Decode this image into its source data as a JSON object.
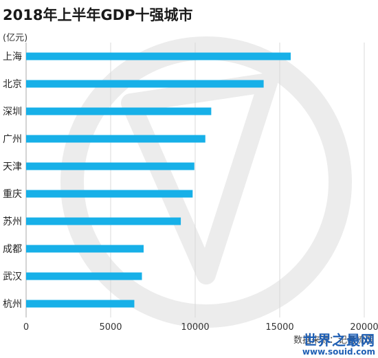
{
  "chart_data": {
    "type": "bar",
    "orientation": "horizontal",
    "title": "2018年上半年GDP十强城市",
    "unit": "(亿元)",
    "categories": [
      "上海",
      "北京",
      "深圳",
      "广州",
      "天津",
      "重庆",
      "苏州",
      "成都",
      "武汉",
      "杭州"
    ],
    "values": [
      15650,
      14050,
      10950,
      10600,
      9950,
      9850,
      9150,
      6950,
      6850,
      6400
    ],
    "x_ticks": [
      0,
      5000,
      10000,
      15000,
      20000
    ],
    "x_tick_labels": [
      "0",
      "5000",
      "10000",
      "15000",
      "20000"
    ],
    "xlim": [
      0,
      20000
    ],
    "bar_color": "#17b0e8",
    "grid": true,
    "grid_color": "#d9d9d9"
  },
  "source_note": "数据来源：记者梳理",
  "watermark": {
    "title": "世界之最网",
    "url": "www.souid.com"
  },
  "colors": {
    "watermark_circle": "#ececec",
    "axis": "#aaaaaa"
  }
}
